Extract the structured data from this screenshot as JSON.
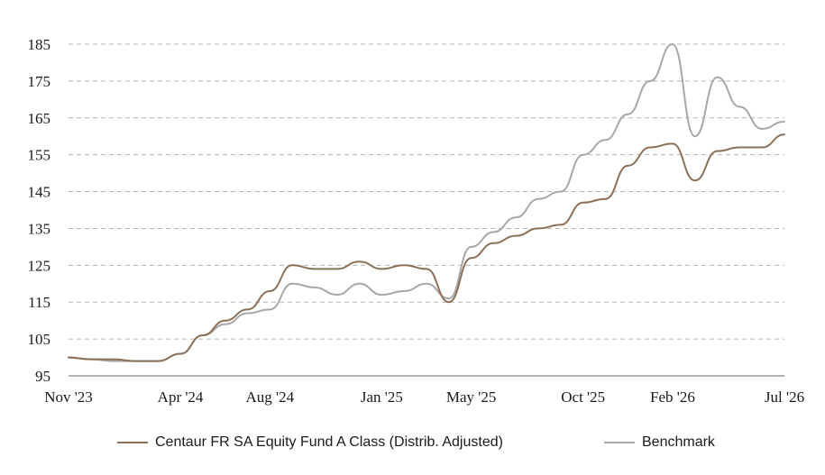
{
  "chart_data": {
    "type": "line",
    "title": "",
    "xlabel": "",
    "ylabel": "",
    "x_ticks": [
      "Nov '23",
      "Apr '24",
      "Aug '24",
      "Jan '25",
      "May '25",
      "Oct '25",
      "Feb '26",
      "Jul '26"
    ],
    "y_ticks": [
      95,
      105,
      115,
      125,
      135,
      145,
      155,
      165,
      175,
      185
    ],
    "ylim": [
      95,
      188
    ],
    "xlim": [
      "2023-11",
      "2026-07"
    ],
    "grid": "horizontal-dashed",
    "legend_position": "bottom",
    "colors": {
      "fund": "#8b7159",
      "benchmark": "#a8a8a8",
      "grid": "#b5b5b5",
      "axis": "#666666"
    },
    "x": [
      "2023-11",
      "2023-12",
      "2024-01",
      "2024-02",
      "2024-03",
      "2024-04",
      "2024-05",
      "2024-06",
      "2024-07",
      "2024-08",
      "2024-09",
      "2024-10",
      "2024-11",
      "2024-12",
      "2025-01",
      "2025-02",
      "2025-03",
      "2025-04",
      "2025-05",
      "2025-06",
      "2025-07",
      "2025-08",
      "2025-09",
      "2025-10",
      "2025-11",
      "2025-12",
      "2026-01",
      "2026-02",
      "2026-03",
      "2026-04",
      "2026-05",
      "2026-06",
      "2026-07"
    ],
    "series": [
      {
        "name": "Centaur FR SA Equity Fund A Class (Distrib. Adjusted)",
        "values": [
          100,
          99.5,
          99.5,
          99,
          99,
          101,
          106,
          110,
          113,
          118,
          125,
          124,
          124,
          126,
          124,
          125,
          124,
          115,
          127,
          131,
          133,
          135,
          136,
          142,
          143,
          152,
          157,
          158,
          148,
          156,
          157,
          157,
          160.5
        ]
      },
      {
        "name": "Benchmark",
        "values": [
          100,
          99.5,
          99,
          99,
          99,
          101,
          106,
          109,
          112,
          113,
          120,
          119,
          117,
          120,
          117,
          118,
          120,
          116,
          130,
          134,
          138,
          143,
          145,
          155,
          159,
          166,
          175,
          185,
          160,
          176,
          168,
          162,
          164
        ]
      }
    ]
  },
  "legend": {
    "fund_label": "Centaur FR SA Equity Fund A Class (Distrib. Adjusted)",
    "benchmark_label": "Benchmark"
  }
}
